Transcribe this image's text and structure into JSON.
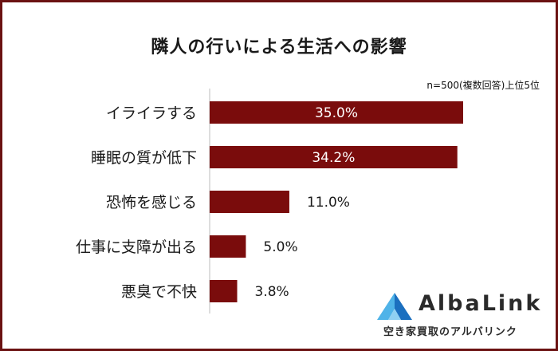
{
  "title": "隣人の行いによる生活への影響",
  "note": "n=500(複数回答)上位5位",
  "brand": {
    "name": "AlbaLink",
    "tagline": "空き家買取のアルバリンク"
  },
  "colors": {
    "bar": "#7a0c0c",
    "frame": "#6b1212",
    "axis": "#bdbdbd",
    "text": "#1a1a1a"
  },
  "chart_data": {
    "type": "bar",
    "orientation": "horizontal",
    "categories": [
      "イライラする",
      "睡眠の質が低下",
      "恐怖を感じる",
      "仕事に支障が出る",
      "悪臭で不快"
    ],
    "values": [
      35.0,
      34.2,
      11.0,
      5.0,
      3.8
    ],
    "labels": [
      "35.0%",
      "34.2%",
      "11.0%",
      "5.0%",
      "3.8%"
    ],
    "xlim": [
      0,
      35
    ],
    "grid": false,
    "legend": "none"
  }
}
